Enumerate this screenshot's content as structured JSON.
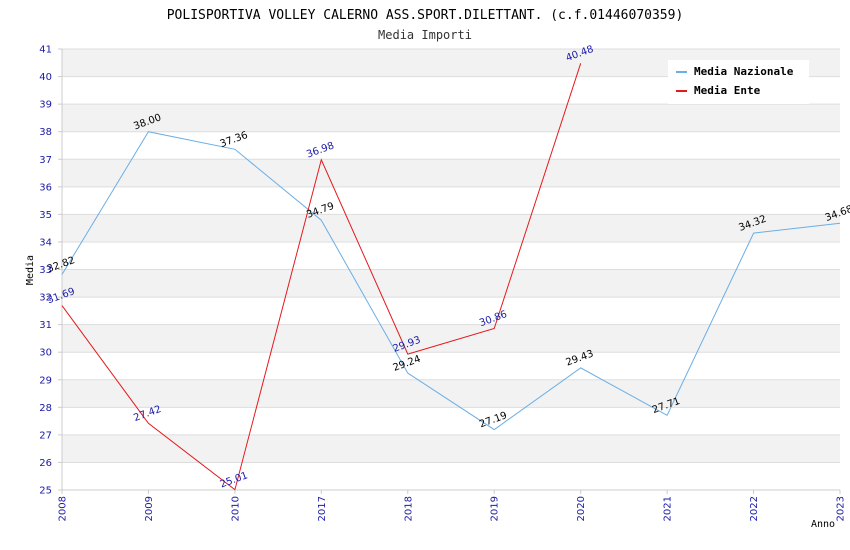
{
  "chart_data": {
    "type": "line",
    "title": "POLISPORTIVA VOLLEY CALERNO ASS.SPORT.DILETTANT. (c.f.01446070359)",
    "subtitle": "Media Importi",
    "xlabel": "Anno",
    "ylabel": "Media",
    "categories": [
      "2008",
      "2009",
      "2010",
      "2017",
      "2018",
      "2019",
      "2020",
      "2021",
      "2022",
      "2023"
    ],
    "ylim": [
      25,
      41
    ],
    "yticks": [
      25,
      26,
      27,
      28,
      29,
      30,
      31,
      32,
      33,
      34,
      35,
      36,
      37,
      38,
      39,
      40,
      41
    ],
    "grid": true,
    "legend_position": "top-right",
    "series": [
      {
        "name": "Media Nazionale",
        "color": "#6aaee6",
        "label_color": "#000000",
        "values": [
          32.82,
          38.0,
          37.36,
          34.79,
          29.24,
          27.19,
          29.43,
          27.71,
          34.32,
          34.68
        ],
        "labels": [
          "32.82",
          "38.00",
          "37.36",
          "34.79",
          "29.24",
          "27.19",
          "29.43",
          "27.71",
          "34.32",
          "34.68"
        ]
      },
      {
        "name": "Media Ente",
        "color": "#e31a1c",
        "label_color": "#1a1aa6",
        "values": [
          31.69,
          27.42,
          25.01,
          36.98,
          29.93,
          30.86,
          40.48,
          null,
          null,
          null
        ],
        "labels": [
          "31.69",
          "27.42",
          "25.01",
          "36.98",
          "29.93",
          "30.86",
          "40.48",
          null,
          null,
          null
        ]
      }
    ]
  }
}
